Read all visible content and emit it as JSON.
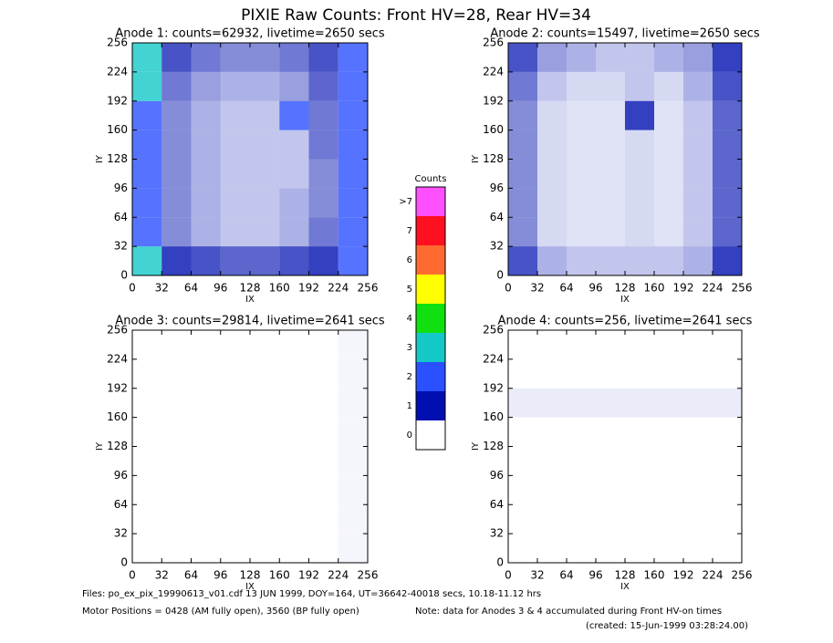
{
  "title": "PIXIE Raw Counts:  Front HV=28, Rear HV=34",
  "chart_data": [
    {
      "type": "heatmap",
      "title": "Anode 1: counts=62932, livetime=2650 secs",
      "x_label": "IX",
      "y_label": "IY",
      "xlim": [
        0,
        256
      ],
      "ylim": [
        0,
        256
      ],
      "xticks": [
        0,
        32,
        64,
        96,
        128,
        160,
        192,
        224,
        256
      ],
      "yticks": [
        0,
        32,
        64,
        96,
        128,
        160,
        192,
        224,
        256
      ],
      "z": [
        [
          2.2,
          1.0,
          0.9,
          0.8,
          0.8,
          0.9,
          1.0,
          1.6
        ],
        [
          2.0,
          0.6,
          0.4,
          0.3,
          0.3,
          0.4,
          0.7,
          1.5
        ],
        [
          1.8,
          0.6,
          0.4,
          0.3,
          0.3,
          0.4,
          0.6,
          1.2
        ],
        [
          1.8,
          0.6,
          0.4,
          0.3,
          0.3,
          0.3,
          0.6,
          1.1
        ],
        [
          1.9,
          0.6,
          0.4,
          0.3,
          0.3,
          0.3,
          0.7,
          1.2
        ],
        [
          2.0,
          0.6,
          0.4,
          0.3,
          0.3,
          1.6,
          0.7,
          1.2
        ],
        [
          2.1,
          0.7,
          0.5,
          0.4,
          0.4,
          0.5,
          0.8,
          1.3
        ],
        [
          2.4,
          0.9,
          0.7,
          0.6,
          0.6,
          0.7,
          0.9,
          1.6
        ]
      ]
    },
    {
      "type": "heatmap",
      "title": "Anode 2: counts=15497, livetime=2650 secs",
      "x_label": "IX",
      "y_label": "IY",
      "xlim": [
        0,
        256
      ],
      "ylim": [
        0,
        256
      ],
      "xticks": [
        0,
        32,
        64,
        96,
        128,
        160,
        192,
        224,
        256
      ],
      "yticks": [
        0,
        32,
        64,
        96,
        128,
        160,
        192,
        224,
        256
      ],
      "z": [
        [
          0.9,
          0.4,
          0.3,
          0.3,
          0.3,
          0.3,
          0.4,
          1.0
        ],
        [
          0.6,
          0.2,
          0.15,
          0.15,
          0.2,
          0.15,
          0.3,
          0.8
        ],
        [
          0.6,
          0.2,
          0.15,
          0.15,
          0.2,
          0.15,
          0.3,
          0.8
        ],
        [
          0.6,
          0.2,
          0.15,
          0.15,
          0.2,
          0.15,
          0.3,
          0.8
        ],
        [
          0.6,
          0.2,
          0.15,
          0.15,
          0.2,
          0.15,
          0.3,
          0.8
        ],
        [
          0.6,
          0.2,
          0.15,
          0.15,
          1.0,
          0.15,
          0.3,
          0.8
        ],
        [
          0.7,
          0.3,
          0.2,
          0.2,
          0.3,
          0.2,
          0.4,
          0.9
        ],
        [
          0.9,
          0.5,
          0.4,
          0.3,
          0.3,
          0.4,
          0.5,
          1.0
        ]
      ]
    },
    {
      "type": "heatmap",
      "title": "Anode 3: counts=29814, livetime=2641 secs",
      "x_label": "IX",
      "y_label": "IY",
      "xlim": [
        0,
        256
      ],
      "ylim": [
        0,
        256
      ],
      "xticks": [
        0,
        32,
        64,
        96,
        128,
        160,
        192,
        224,
        256
      ],
      "yticks": [
        0,
        32,
        64,
        96,
        128,
        160,
        192,
        224,
        256
      ],
      "z": [
        [
          0,
          0,
          0,
          0,
          0,
          0,
          0,
          0.05
        ],
        [
          0,
          0,
          0,
          0,
          0,
          0,
          0,
          0.05
        ],
        [
          0,
          0,
          0,
          0,
          0,
          0,
          0,
          0.05
        ],
        [
          0,
          0,
          0,
          0,
          0,
          0,
          0,
          0.05
        ],
        [
          0,
          0,
          0,
          0,
          0,
          0,
          0,
          0.05
        ],
        [
          0,
          0,
          0,
          0,
          0,
          0,
          0,
          0.05
        ],
        [
          0,
          0,
          0,
          0,
          0,
          0,
          0,
          0.05
        ],
        [
          0,
          0,
          0,
          0,
          0,
          0,
          0,
          0.05
        ]
      ]
    },
    {
      "type": "heatmap",
      "title": "Anode 4: counts=256, livetime=2641 secs",
      "x_label": "IX",
      "y_label": "IY",
      "xlim": [
        0,
        256
      ],
      "ylim": [
        0,
        256
      ],
      "xticks": [
        0,
        32,
        64,
        96,
        128,
        160,
        192,
        224,
        256
      ],
      "yticks": [
        0,
        32,
        64,
        96,
        128,
        160,
        192,
        224,
        256
      ],
      "z": [
        [
          0,
          0,
          0,
          0,
          0,
          0,
          0,
          0
        ],
        [
          0,
          0,
          0,
          0,
          0,
          0,
          0,
          0
        ],
        [
          0,
          0,
          0,
          0,
          0,
          0,
          0,
          0
        ],
        [
          0,
          0,
          0,
          0,
          0,
          0,
          0,
          0
        ],
        [
          0,
          0,
          0,
          0,
          0,
          0,
          0,
          0
        ],
        [
          0.1,
          0.1,
          0.1,
          0.1,
          0.1,
          0.1,
          0.1,
          0.1
        ],
        [
          0,
          0,
          0,
          0,
          0,
          0,
          0,
          0
        ],
        [
          0,
          0,
          0,
          0,
          0,
          0,
          0,
          0
        ]
      ]
    }
  ],
  "colorbar": {
    "title": "Counts",
    "levels": [
      {
        "label": "0",
        "color": "#ffffff"
      },
      {
        "label": "1",
        "color": "#0010b0"
      },
      {
        "label": "2",
        "color": "#2a50ff"
      },
      {
        "label": "3",
        "color": "#14c8c8"
      },
      {
        "label": "4",
        "color": "#10e010"
      },
      {
        "label": "5",
        "color": "#ffff00"
      },
      {
        "label": "6",
        "color": "#ff6a30"
      },
      {
        "label": "7",
        "color": "#ff1020"
      },
      {
        "label": ">7",
        "color": "#ff50ff"
      }
    ]
  },
  "footer": {
    "files": "Files: po_ex_pix_19990613_v01.cdf    13 JUN 1999, DOY=164, UT=36642-40018 secs, 10.18-11.12 hrs",
    "motor": "Motor Positions = 0428 (AM fully open), 3560 (BP fully open)",
    "note": "Note: data for Anodes 3 & 4 accumulated during Front HV-on times",
    "created": "(created: 15-Jun-1999 03:28:24.00)"
  }
}
